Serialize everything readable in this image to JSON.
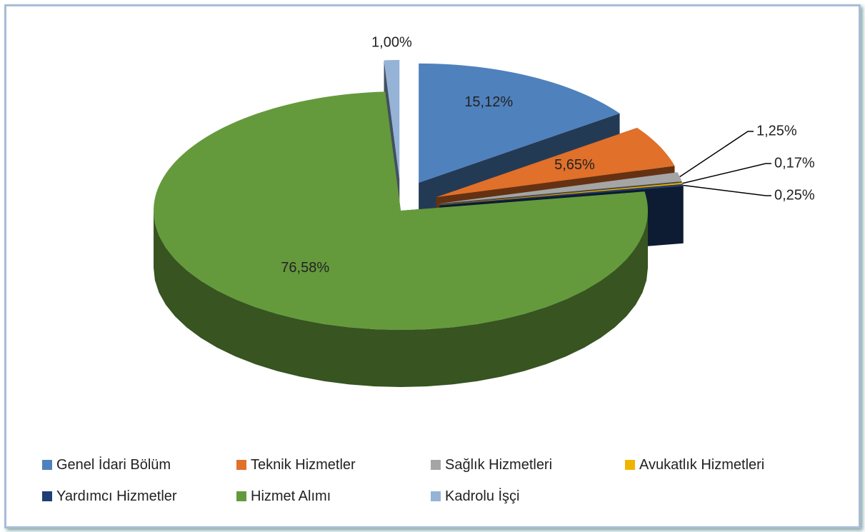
{
  "chart_data": {
    "type": "pie",
    "categories": [
      "Genel İdari Bölüm",
      "Teknik Hizmetler",
      "Sağlık Hizmetleri",
      "Avukatlık Hizmetleri",
      "Yardımcı Hizmetler",
      "Hizmet Alımı",
      "Kadrolu İşçi"
    ],
    "values": [
      15.12,
      5.65,
      1.25,
      0.17,
      0.25,
      76.58,
      1.0
    ],
    "value_labels": [
      "15,12%",
      "5,65%",
      "1,25%",
      "0,17%",
      "0,25%",
      "76,58%",
      "1,00%"
    ],
    "colors": [
      "#4f81bd",
      "#e0702a",
      "#a5a5a5",
      "#f0b400",
      "#1f3e73",
      "#649a3c",
      "#95b3d7"
    ],
    "legend": "bottom"
  }
}
